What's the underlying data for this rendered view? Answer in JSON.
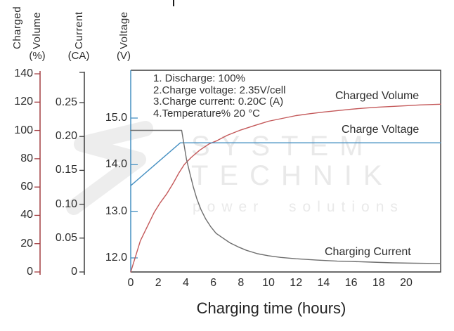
{
  "palette": {
    "frame": "#3c3c3c",
    "text": "#2d2d2d",
    "watermark": "#e9e9e9",
    "volume_red": "#a33e42",
    "voltage_blue": "#4690c2",
    "current_black": "#3d3d3d"
  },
  "watermark": {
    "line1": "SYSTEM",
    "line2": "TECHNIK",
    "line3": "power solutions"
  },
  "axes": {
    "x": {
      "label": "Charging time (hours)",
      "ticks": [
        "0",
        "2",
        "4",
        "6",
        "8",
        "10",
        "12",
        "14",
        "16",
        "18",
        "20"
      ],
      "tick_values": [
        0,
        2,
        4,
        6,
        8,
        10,
        12,
        14,
        16,
        18,
        20
      ]
    },
    "volume": {
      "title_line1": "Charged",
      "title_line2": "Volume",
      "unit": "(%)",
      "color": "#a33e42",
      "ticks": [
        "0",
        "20",
        "40",
        "60",
        "80",
        "100",
        "120",
        "140"
      ],
      "tick_values": [
        0,
        20,
        40,
        60,
        80,
        100,
        120,
        140
      ]
    },
    "current": {
      "title": "Current",
      "unit": "(CA)",
      "color": "#3d3d3d",
      "ticks": [
        "0",
        "0.05",
        "0.10",
        "0.15",
        "0.20",
        "0.25"
      ],
      "tick_values": [
        0,
        0.05,
        0.1,
        0.15,
        0.2,
        0.25
      ]
    },
    "voltage": {
      "title": "Voltage",
      "unit": "(V)",
      "color": "#4690c2",
      "ticks": [
        "12.0",
        "13.0",
        "14.0",
        "15.0"
      ],
      "tick_values": [
        12,
        13,
        14,
        15
      ]
    }
  },
  "annotation": {
    "lines": [
      "1. Discharge: 100%",
      "2.Charge voltage: 2.35V/cell",
      "3.Charge current: 0.20C (A)",
      "4.Temperature% 20 °C"
    ]
  },
  "curve_labels": {
    "charged_volume": "Charged Volume",
    "charge_voltage": "Charge Voltage",
    "charging_current": "Charging Current"
  },
  "chart_data": {
    "type": "line",
    "title": "",
    "xlabel": "Charging time (hours)",
    "x_range": [
      0,
      22.5
    ],
    "x_ticks": [
      0,
      2,
      4,
      6,
      8,
      10,
      12,
      14,
      16,
      18,
      20
    ],
    "grid": false,
    "legend_position": "inline-right",
    "notes": [
      "1. Discharge: 100%",
      "2.Charge voltage: 2.35V/cell",
      "3.Charge current: 0.20C (A)",
      "4.Temperature% 20 °C"
    ],
    "axes_ranges": {
      "volume_percent": [
        0,
        140
      ],
      "current_CA": [
        0,
        0.25
      ],
      "voltage_V": [
        12,
        15
      ]
    },
    "series": [
      {
        "id": "charged-volume",
        "name": "Charged Volume",
        "unit": "%",
        "axis": "volume",
        "color": "#c4595a",
        "points": [
          [
            0,
            0
          ],
          [
            0.35,
            11
          ],
          [
            0.7,
            22
          ],
          [
            1.2,
            32
          ],
          [
            1.7,
            42
          ],
          [
            2.15,
            49
          ],
          [
            2.6,
            55
          ],
          [
            3.1,
            63
          ],
          [
            3.5,
            70
          ],
          [
            3.9,
            76
          ],
          [
            4.4,
            81
          ],
          [
            5,
            86
          ],
          [
            5.7,
            90.5
          ],
          [
            6.2,
            92.5
          ],
          [
            7,
            96.5
          ],
          [
            7.9,
            100
          ],
          [
            9,
            103.5
          ],
          [
            10,
            106.5
          ],
          [
            11,
            108.5
          ],
          [
            12,
            110.5
          ],
          [
            13,
            111.8
          ],
          [
            14,
            113
          ],
          [
            15,
            114
          ],
          [
            16,
            115
          ],
          [
            17,
            115.8
          ],
          [
            18,
            116.5
          ],
          [
            19,
            117
          ],
          [
            20,
            117.5
          ],
          [
            21,
            118
          ],
          [
            22.5,
            118.5
          ]
        ]
      },
      {
        "id": "charge-voltage",
        "name": "Charge Voltage",
        "unit": "V",
        "axis": "voltage",
        "color": "#4690c2",
        "points": [
          [
            0,
            13.55
          ],
          [
            1.8,
            14.01
          ],
          [
            3.6,
            14.47
          ],
          [
            22.5,
            14.47
          ]
        ]
      },
      {
        "id": "charging-current",
        "name": "Charging Current",
        "unit": "CA",
        "axis": "current",
        "color": "#6e6e6e",
        "points": [
          [
            0,
            0.209
          ],
          [
            3.7,
            0.209
          ],
          [
            3.85,
            0.19
          ],
          [
            4.05,
            0.166
          ],
          [
            4.3,
            0.145
          ],
          [
            4.55,
            0.125
          ],
          [
            4.8,
            0.108
          ],
          [
            5.1,
            0.092
          ],
          [
            5.45,
            0.078
          ],
          [
            5.8,
            0.067
          ],
          [
            6.2,
            0.057
          ],
          [
            6.7,
            0.05
          ],
          [
            7.2,
            0.043
          ],
          [
            7.8,
            0.037
          ],
          [
            8.4,
            0.032
          ],
          [
            9.2,
            0.027
          ],
          [
            10,
            0.024
          ],
          [
            10.9,
            0.0215
          ],
          [
            12,
            0.0195
          ],
          [
            13.5,
            0.0175
          ],
          [
            15,
            0.016
          ],
          [
            16,
            0.0155
          ],
          [
            17.5,
            0.0145
          ],
          [
            19,
            0.0135
          ],
          [
            20.5,
            0.013
          ],
          [
            22.5,
            0.0125
          ]
        ]
      }
    ]
  }
}
